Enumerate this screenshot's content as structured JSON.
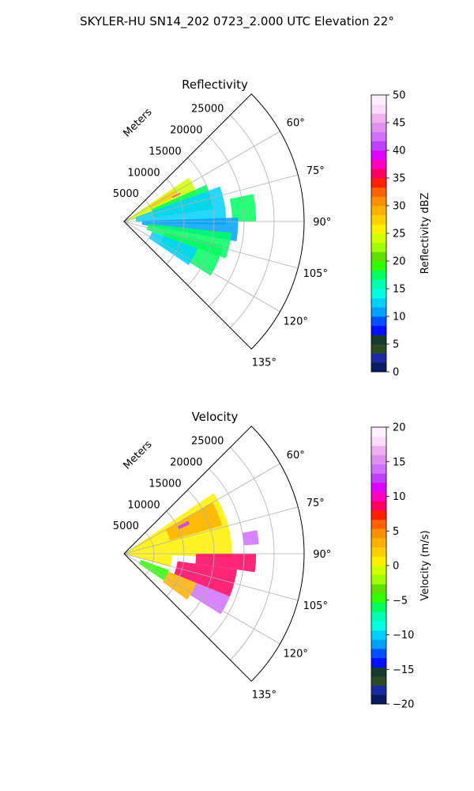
{
  "figure": {
    "title": "SKYLER-HU  SN14_202  0723_2.000 UTC Elevation 22°"
  },
  "chart_data": [
    {
      "type": "heatmap",
      "projection": "polar-sector",
      "title": "Reflectivity",
      "radial_label": "Meters",
      "radial_ticks": [
        "5000",
        "10000",
        "15000",
        "20000",
        "25000"
      ],
      "radial_tick_values": [
        5000,
        10000,
        15000,
        20000,
        25000
      ],
      "rmax": 30000,
      "angle_range_deg": [
        45,
        135
      ],
      "angle_ticks": [
        "60°",
        "75°",
        "90°",
        "105°",
        "120°",
        "135°"
      ],
      "angle_tick_values": [
        60,
        75,
        90,
        105,
        120,
        135
      ],
      "grid": true,
      "colorbar": {
        "label": "Reflectivity dBZ",
        "min": 0,
        "max": 50,
        "ticks": [
          "0",
          "5",
          "10",
          "15",
          "20",
          "25",
          "30",
          "35",
          "40",
          "45",
          "50"
        ],
        "tick_values": [
          0,
          5,
          10,
          15,
          20,
          25,
          30,
          35,
          40,
          45,
          50
        ],
        "colors": [
          "#0a1a60",
          "#1a2aa0",
          "#2a4a28",
          "#153a30",
          "#0010ff",
          "#0050ff",
          "#00a0ff",
          "#00d0ff",
          "#00ffe0",
          "#00ffb0",
          "#00ff60",
          "#30ff00",
          "#60e000",
          "#a0ff00",
          "#d0ff00",
          "#fff000",
          "#ffd000",
          "#ffb000",
          "#ff9000",
          "#ff6000",
          "#ff2000",
          "#ff0060",
          "#ff00c0",
          "#e000ff",
          "#c040ff",
          "#d070ff",
          "#e090ee",
          "#f0b0f0",
          "#fadcfa",
          "#fff0ff"
        ]
      },
      "regions": [
        {
          "angle_start": 56,
          "angle_end": 76,
          "r_start": 0,
          "r_end": 13000,
          "value": 24
        },
        {
          "angle_start": 58,
          "angle_end": 64,
          "r_start": 5000,
          "r_end": 10000,
          "value": 27
        },
        {
          "angle_start": 63,
          "angle_end": 64,
          "r_start": 9000,
          "r_end": 10500,
          "value": 38
        },
        {
          "angle_start": 66,
          "angle_end": 82,
          "r_start": 5000,
          "r_end": 15000,
          "value": 18
        },
        {
          "angle_start": 70,
          "angle_end": 92,
          "r_start": 2000,
          "r_end": 17000,
          "value": 13
        },
        {
          "angle_start": 78,
          "angle_end": 90,
          "r_start": 18000,
          "r_end": 22000,
          "value": 17
        },
        {
          "angle_start": 88,
          "angle_end": 100,
          "r_start": 3000,
          "r_end": 19000,
          "value": 10
        },
        {
          "angle_start": 96,
          "angle_end": 110,
          "r_start": 4000,
          "r_end": 18000,
          "value": 17
        },
        {
          "angle_start": 104,
          "angle_end": 122,
          "r_start": 7000,
          "r_end": 17000,
          "value": 18
        },
        {
          "angle_start": 110,
          "angle_end": 124,
          "r_start": 5000,
          "r_end": 13000,
          "value": 13
        }
      ]
    },
    {
      "type": "heatmap",
      "projection": "polar-sector",
      "title": "Velocity",
      "radial_label": "Meters",
      "radial_ticks": [
        "5000",
        "10000",
        "15000",
        "20000",
        "25000"
      ],
      "radial_tick_values": [
        5000,
        10000,
        15000,
        20000,
        25000
      ],
      "rmax": 30000,
      "angle_range_deg": [
        45,
        135
      ],
      "angle_ticks": [
        "60°",
        "75°",
        "90°",
        "105°",
        "120°",
        "135°"
      ],
      "angle_tick_values": [
        60,
        75,
        90,
        105,
        120,
        135
      ],
      "grid": true,
      "colorbar": {
        "label": "Velocity (m/s)",
        "min": -20,
        "max": 20,
        "ticks": [
          "−20",
          "−15",
          "−10",
          "−5",
          "0",
          "5",
          "10",
          "15",
          "20"
        ],
        "tick_values": [
          -20,
          -15,
          -10,
          -5,
          0,
          5,
          10,
          15,
          20
        ],
        "colors": [
          "#0a1a60",
          "#1a2aa0",
          "#2a4a28",
          "#153a30",
          "#0010ff",
          "#0050ff",
          "#00a0ff",
          "#00d0ff",
          "#00ffe0",
          "#00ffb0",
          "#00ff60",
          "#30ff00",
          "#60e000",
          "#a0ff00",
          "#d0ff00",
          "#fff000",
          "#ffd000",
          "#ffb000",
          "#ff9000",
          "#ff6000",
          "#ff2000",
          "#ff0060",
          "#ff00c0",
          "#e000ff",
          "#c040ff",
          "#d070ff",
          "#e090ee",
          "#f0b0f0",
          "#fadcfa",
          "#fff0ff"
        ]
      },
      "regions": [
        {
          "angle_start": 56,
          "angle_end": 92,
          "r_start": 0,
          "r_end": 18000,
          "value": 1
        },
        {
          "angle_start": 60,
          "angle_end": 74,
          "r_start": 8000,
          "r_end": 17000,
          "value": 3
        },
        {
          "angle_start": 63,
          "angle_end": 66,
          "r_start": 10000,
          "r_end": 12000,
          "value": 13
        },
        {
          "angle_start": 80,
          "angle_end": 86,
          "r_start": 20000,
          "r_end": 22500,
          "value": 14
        },
        {
          "angle_start": 90,
          "angle_end": 98,
          "r_start": 12000,
          "r_end": 22000,
          "value": 9
        },
        {
          "angle_start": 92,
          "angle_end": 106,
          "r_start": 0,
          "r_end": 8000,
          "value": 0
        },
        {
          "angle_start": 98,
          "angle_end": 112,
          "r_start": 9000,
          "r_end": 19000,
          "value": 8
        },
        {
          "angle_start": 110,
          "angle_end": 124,
          "r_start": 3000,
          "r_end": 8000,
          "value": -5
        },
        {
          "angle_start": 112,
          "angle_end": 122,
          "r_start": 13000,
          "r_end": 19000,
          "value": 14
        },
        {
          "angle_start": 112,
          "angle_end": 126,
          "r_start": 8000,
          "r_end": 13000,
          "value": 3
        }
      ]
    }
  ]
}
